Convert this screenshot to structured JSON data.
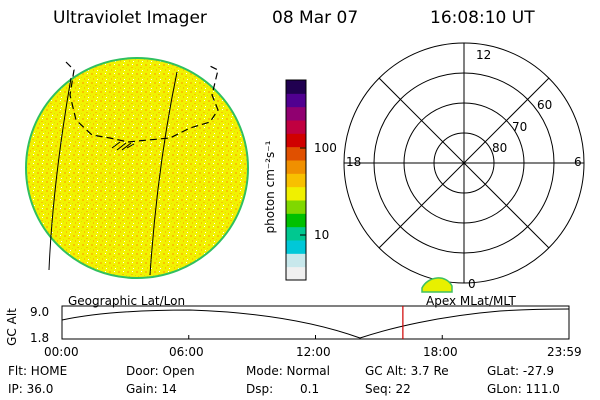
{
  "header": {
    "title": "Ultraviolet Imager",
    "date": "08 Mar 07",
    "time": "16:08:10 UT"
  },
  "colorbar": {
    "unit_label": "photon cm⁻²s⁻¹",
    "ticks": [
      {
        "label": "100",
        "value": 100
      },
      {
        "label": "10",
        "value": 10
      }
    ],
    "colors": [
      "#f0f0f0",
      "#c8e8ec",
      "#00c8d8",
      "#00c890",
      "#00c000",
      "#80d800",
      "#f0f000",
      "#f8c000",
      "#f09000",
      "#e05000",
      "#d00000",
      "#c00040",
      "#900070",
      "#500090",
      "#200050"
    ]
  },
  "polar_plot": {
    "mlt_labels": {
      "top": "12",
      "left": "18",
      "right": "6",
      "bottom": "0"
    },
    "lat_labels": [
      "60",
      "70",
      "80"
    ],
    "lat_rings": [
      60,
      70,
      80
    ],
    "outer_lat": 50
  },
  "timeline": {
    "left_label": "Geographic Lat/Lon",
    "right_label": "Apex MLat/MLT",
    "axis_title": "GC Alt",
    "y_ticks": [
      "9.0",
      "1.8"
    ],
    "x_ticks": [
      "00:00",
      "06:00",
      "12:00",
      "18:00",
      "23:59"
    ],
    "current_time_hours": 16.136,
    "marker_color": "#d00000"
  },
  "status": {
    "flt": "Flt: HOME",
    "ip": "IP: 36.0",
    "door": "Door: Open",
    "gain": "Gain: 14",
    "mode": "Mode: Normal",
    "dsp_label": "Dsp:",
    "dsp_value": "0.1",
    "gc_alt": "GC Alt: 3.7 Re",
    "seq": "Seq: 22",
    "glat": "GLat: -27.9",
    "glon": "GLon: 111.0"
  },
  "colors": {
    "disk_fill": "#f2f200",
    "disk_mottle": "#f8c400",
    "disk_edge": "#30c060"
  }
}
